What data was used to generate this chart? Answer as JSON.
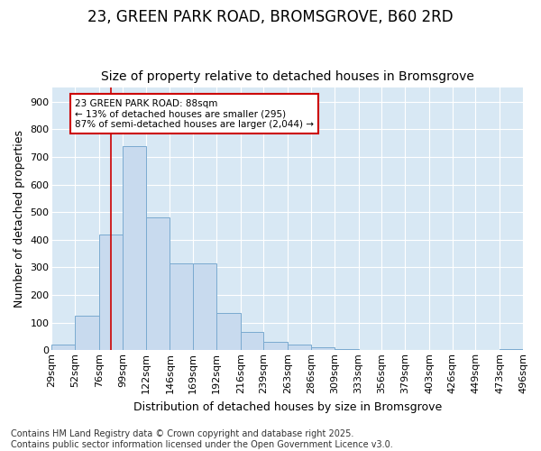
{
  "title1": "23, GREEN PARK ROAD, BROMSGROVE, B60 2RD",
  "title2": "Size of property relative to detached houses in Bromsgrove",
  "xlabel": "Distribution of detached houses by size in Bromsgrove",
  "ylabel": "Number of detached properties",
  "footer1": "Contains HM Land Registry data © Crown copyright and database right 2025.",
  "footer2": "Contains public sector information licensed under the Open Government Licence v3.0.",
  "bin_edges": [
    29,
    52,
    76,
    99,
    122,
    146,
    169,
    192,
    216,
    239,
    263,
    286,
    309,
    333,
    356,
    379,
    403,
    426,
    449,
    473,
    496
  ],
  "bar_heights": [
    20,
    125,
    420,
    740,
    480,
    315,
    315,
    135,
    65,
    30,
    20,
    10,
    5,
    0,
    0,
    0,
    0,
    0,
    0,
    5
  ],
  "bar_color": "#c8daee",
  "bar_edge_color": "#7aaad0",
  "vline_x": 88,
  "vline_color": "#cc0000",
  "annotation_text": "23 GREEN PARK ROAD: 88sqm\n← 13% of detached houses are smaller (295)\n87% of semi-detached houses are larger (2,044) →",
  "annotation_box_color": "#cc0000",
  "annotation_text_color": "#000000",
  "annotation_bg_color": "#ffffff",
  "ylim": [
    0,
    950
  ],
  "yticks": [
    0,
    100,
    200,
    300,
    400,
    500,
    600,
    700,
    800,
    900
  ],
  "fig_bg_color": "#ffffff",
  "plot_bg_color": "#d8e8f4",
  "grid_color": "#ffffff",
  "title1_fontsize": 12,
  "title2_fontsize": 10,
  "axis_label_fontsize": 9,
  "tick_fontsize": 8,
  "footer_fontsize": 7
}
